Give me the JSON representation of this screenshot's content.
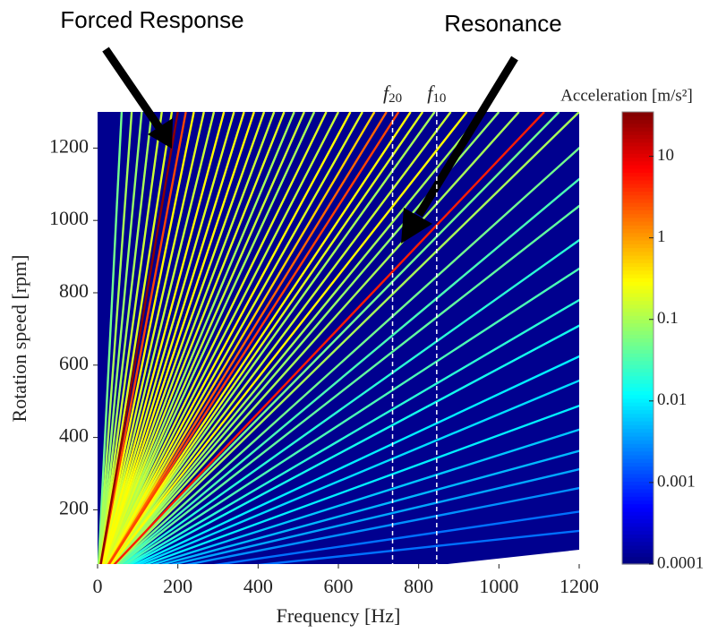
{
  "chart_data": {
    "type": "campbell",
    "annotations": [
      "Forced Response",
      "Resonance"
    ],
    "xlabel": "Frequency [Hz]",
    "ylabel": "Rotation speed [rpm]",
    "colorbar_label": "Acceleration [m/s²]",
    "xlim": [
      0,
      1200
    ],
    "xticks": [
      0,
      200,
      400,
      600,
      800,
      1000,
      1200
    ],
    "ylim": [
      50,
      1300
    ],
    "yticks": [
      200,
      400,
      600,
      800,
      1000,
      1200
    ],
    "clim": [
      0.0001,
      35
    ],
    "cticks": [
      0.0001,
      0.001,
      0.01,
      0.1,
      1,
      10
    ],
    "color_scale": "log",
    "markers": [
      {
        "symbol": "f",
        "subscript": "20",
        "x": 735
      },
      {
        "symbol": "f",
        "subscript": "10",
        "x": 845
      }
    ],
    "rays": {
      "top_frequencies": [
        60,
        85,
        110,
        135,
        160,
        185,
        200,
        220,
        240,
        265,
        290,
        315,
        340,
        365,
        390,
        415,
        440,
        465,
        490,
        515,
        540,
        570,
        600,
        630,
        660,
        690,
        720,
        750,
        780,
        810,
        840,
        880,
        920,
        960,
        1000,
        1050,
        1113,
        1150,
        1200,
        1300,
        1400,
        1500,
        1650,
        1800,
        2000,
        2200,
        2500,
        2800,
        3200,
        3700,
        4300,
        5000,
        6000,
        8000,
        11000
      ],
      "levels": [
        0.05,
        0.1,
        0.08,
        0.1,
        0.15,
        0.2,
        30,
        3,
        0.3,
        0.2,
        0.15,
        0.3,
        0.2,
        0.25,
        0.3,
        0.2,
        0.15,
        0.2,
        0.1,
        0.15,
        0.1,
        0.2,
        0.15,
        0.3,
        0.2,
        0.5,
        2,
        3,
        0.3,
        0.2,
        0.1,
        0.15,
        0.3,
        0.1,
        0.08,
        0.1,
        5,
        0.05,
        0.1,
        0.05,
        0.03,
        0.04,
        0.02,
        0.03,
        0.02,
        0.015,
        0.01,
        0.008,
        0.01,
        0.006,
        0.005,
        0.004,
        0.003,
        0.002,
        0.002
      ]
    }
  }
}
